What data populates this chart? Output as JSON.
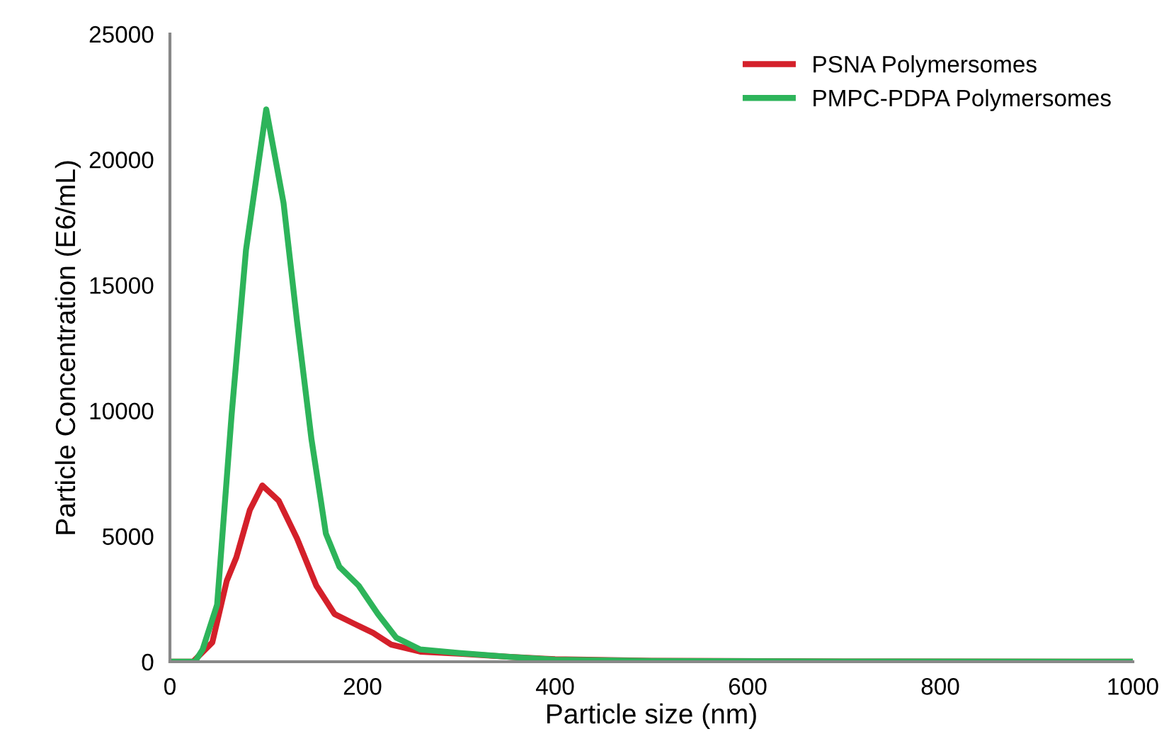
{
  "chart_data": {
    "type": "line",
    "xlabel": "Particle size (nm)",
    "ylabel": "Particle Concentration (E6/mL)",
    "xlim": [
      0,
      1000
    ],
    "xticks": [
      0,
      200,
      400,
      600,
      800,
      1000
    ],
    "ylim": [
      0,
      25000
    ],
    "yticks": [
      0,
      5000,
      10000,
      15000,
      20000,
      25000
    ],
    "grid": false,
    "legend": "top right",
    "marker": "none",
    "line_style": "solid",
    "series": [
      {
        "name": "PSNA Polymersomes",
        "color": "#d4202a",
        "x": [
          0,
          24,
          44,
          59,
          69,
          83,
          96,
          113,
          132,
          152,
          171,
          191,
          211,
          230,
          260,
          300,
          350,
          400,
          500,
          700,
          1000
        ],
        "values": [
          0,
          0,
          770,
          3220,
          4160,
          6040,
          7020,
          6410,
          4910,
          3030,
          1900,
          1520,
          1150,
          680,
          400,
          320,
          200,
          100,
          40,
          10,
          0
        ]
      },
      {
        "name": "PMPC-PDPA Polymersomes",
        "color": "#2db45a",
        "x": [
          0,
          26,
          34,
          49,
          64,
          79,
          100,
          118,
          132,
          147,
          162,
          176,
          196,
          216,
          235,
          260,
          300,
          350,
          400,
          500,
          700,
          1000
        ],
        "values": [
          0,
          0,
          490,
          2270,
          9800,
          16400,
          22000,
          18270,
          13560,
          8860,
          5100,
          3780,
          3030,
          1900,
          960,
          490,
          350,
          200,
          80,
          30,
          10,
          0
        ]
      }
    ]
  }
}
